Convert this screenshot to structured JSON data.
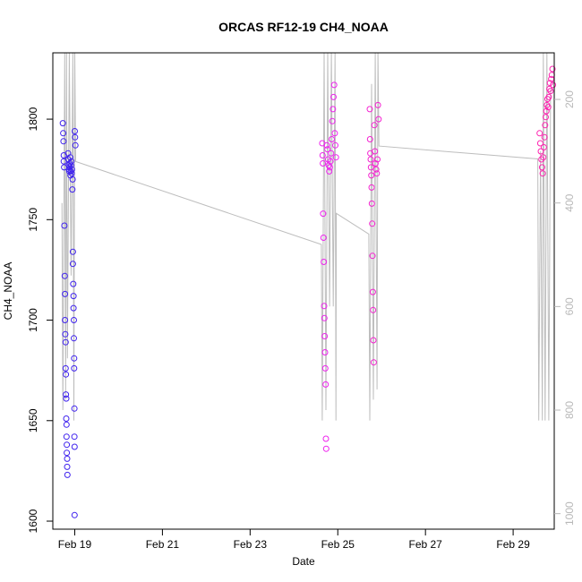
{
  "colors": {
    "left_axis": "#000000",
    "right_axis": "#b8b8b8",
    "trace_line": "#bdbdbd",
    "series_start": "#3f22ee",
    "series_end": "#ff22b0"
  },
  "chart_data": {
    "type": "scatter",
    "title": "ORCAS RF12-19 CH4_NOAA",
    "xlabel": "Date",
    "ylabel": "CH4_NOAA",
    "x_axis_type": "date",
    "xlim": [
      "2016-02-18 12:00",
      "2016-02-29 22:30"
    ],
    "ylim": [
      1596,
      1833
    ],
    "y2_axis": {
      "reversed": true,
      "range": [
        110,
        1030
      ],
      "ticks": [
        200,
        400,
        600,
        800,
        1000
      ],
      "color": "#b8b8b8",
      "label": ""
    },
    "x_ticks": [
      {
        "date": "2016-02-19",
        "label": "Feb 19"
      },
      {
        "date": "2016-02-21",
        "label": "Feb 21"
      },
      {
        "date": "2016-02-23",
        "label": "Feb 23"
      },
      {
        "date": "2016-02-25",
        "label": "Feb 25"
      },
      {
        "date": "2016-02-27",
        "label": "Feb 27"
      },
      {
        "date": "2016-02-29",
        "label": "Feb 29"
      }
    ],
    "y_ticks": [
      1600,
      1650,
      1700,
      1750,
      1800
    ],
    "grid": false,
    "legend": "none",
    "series": [
      {
        "marker": "open-circle",
        "color": "#3f22ee",
        "points": [
          {
            "x": "2016-02-18 17:30",
            "y": 1798
          },
          {
            "x": "2016-02-18 17:40",
            "y": 1793
          },
          {
            "x": "2016-02-18 17:50",
            "y": 1789
          },
          {
            "x": "2016-02-18 18:00",
            "y": 1782
          },
          {
            "x": "2016-02-18 18:00",
            "y": 1779
          },
          {
            "x": "2016-02-18 18:10",
            "y": 1776
          },
          {
            "x": "2016-02-18 18:20",
            "y": 1747
          },
          {
            "x": "2016-02-18 18:30",
            "y": 1722
          },
          {
            "x": "2016-02-18 18:40",
            "y": 1713
          },
          {
            "x": "2016-02-18 18:40",
            "y": 1700
          },
          {
            "x": "2016-02-18 18:50",
            "y": 1693
          },
          {
            "x": "2016-02-18 19:00",
            "y": 1689
          },
          {
            "x": "2016-02-18 19:00",
            "y": 1676
          },
          {
            "x": "2016-02-18 19:10",
            "y": 1673
          },
          {
            "x": "2016-02-18 19:10",
            "y": 1663
          },
          {
            "x": "2016-02-18 19:20",
            "y": 1661
          },
          {
            "x": "2016-02-18 19:20",
            "y": 1651
          },
          {
            "x": "2016-02-18 19:30",
            "y": 1648
          },
          {
            "x": "2016-02-18 19:30",
            "y": 1642
          },
          {
            "x": "2016-02-18 19:40",
            "y": 1638
          },
          {
            "x": "2016-02-18 19:40",
            "y": 1634
          },
          {
            "x": "2016-02-18 19:50",
            "y": 1631
          },
          {
            "x": "2016-02-18 19:50",
            "y": 1627
          },
          {
            "x": "2016-02-18 20:00",
            "y": 1623
          },
          {
            "x": "2016-02-18 20:20",
            "y": 1783
          },
          {
            "x": "2016-02-18 20:30",
            "y": 1780
          },
          {
            "x": "2016-02-18 20:40",
            "y": 1777
          },
          {
            "x": "2016-02-18 20:50",
            "y": 1775
          },
          {
            "x": "2016-02-18 21:00",
            "y": 1774
          },
          {
            "x": "2016-02-18 21:10",
            "y": 1776
          },
          {
            "x": "2016-02-18 21:20",
            "y": 1778
          },
          {
            "x": "2016-02-18 21:30",
            "y": 1781
          },
          {
            "x": "2016-02-18 21:40",
            "y": 1772
          },
          {
            "x": "2016-02-18 21:50",
            "y": 1774
          },
          {
            "x": "2016-02-18 22:00",
            "y": 1777
          },
          {
            "x": "2016-02-18 22:10",
            "y": 1779
          },
          {
            "x": "2016-02-18 22:20",
            "y": 1773
          },
          {
            "x": "2016-02-18 22:30",
            "y": 1775
          },
          {
            "x": "2016-02-18 22:40",
            "y": 1765
          },
          {
            "x": "2016-02-18 22:50",
            "y": 1770
          },
          {
            "x": "2016-02-18 23:00",
            "y": 1734
          },
          {
            "x": "2016-02-18 23:00",
            "y": 1728
          },
          {
            "x": "2016-02-18 23:10",
            "y": 1718
          },
          {
            "x": "2016-02-18 23:20",
            "y": 1712
          },
          {
            "x": "2016-02-18 23:20",
            "y": 1706
          },
          {
            "x": "2016-02-18 23:30",
            "y": 1700
          },
          {
            "x": "2016-02-18 23:30",
            "y": 1691
          },
          {
            "x": "2016-02-18 23:40",
            "y": 1681
          },
          {
            "x": "2016-02-18 23:40",
            "y": 1676
          },
          {
            "x": "2016-02-18 23:50",
            "y": 1656
          },
          {
            "x": "2016-02-18 23:50",
            "y": 1642
          },
          {
            "x": "2016-02-18 23:55",
            "y": 1637
          },
          {
            "x": "2016-02-18 23:55",
            "y": 1603
          },
          {
            "x": "2016-02-19 00:00",
            "y": 1794
          },
          {
            "x": "2016-02-19 00:10",
            "y": 1791
          },
          {
            "x": "2016-02-19 00:20",
            "y": 1787
          }
        ]
      },
      {
        "marker": "open-circle",
        "color": "#ee22ee",
        "points": [
          {
            "x": "2016-02-24 15:30",
            "y": 1788
          },
          {
            "x": "2016-02-24 15:40",
            "y": 1782
          },
          {
            "x": "2016-02-24 15:50",
            "y": 1778
          },
          {
            "x": "2016-02-24 16:00",
            "y": 1753
          },
          {
            "x": "2016-02-24 16:10",
            "y": 1741
          },
          {
            "x": "2016-02-24 16:20",
            "y": 1729
          },
          {
            "x": "2016-02-24 16:30",
            "y": 1707
          },
          {
            "x": "2016-02-24 16:40",
            "y": 1701
          },
          {
            "x": "2016-02-24 16:50",
            "y": 1692
          },
          {
            "x": "2016-02-24 17:00",
            "y": 1684
          },
          {
            "x": "2016-02-24 17:10",
            "y": 1676
          },
          {
            "x": "2016-02-24 17:20",
            "y": 1668
          },
          {
            "x": "2016-02-24 17:30",
            "y": 1641
          },
          {
            "x": "2016-02-24 17:40",
            "y": 1636
          },
          {
            "x": "2016-02-24 18:00",
            "y": 1787
          },
          {
            "x": "2016-02-24 18:20",
            "y": 1785
          },
          {
            "x": "2016-02-24 18:40",
            "y": 1780
          },
          {
            "x": "2016-02-24 19:00",
            "y": 1777
          },
          {
            "x": "2016-02-24 19:20",
            "y": 1774
          },
          {
            "x": "2016-02-24 19:40",
            "y": 1776
          },
          {
            "x": "2016-02-24 20:00",
            "y": 1779
          },
          {
            "x": "2016-02-24 20:20",
            "y": 1783
          },
          {
            "x": "2016-02-24 20:40",
            "y": 1790
          },
          {
            "x": "2016-02-24 21:00",
            "y": 1799
          },
          {
            "x": "2016-02-24 21:20",
            "y": 1805
          },
          {
            "x": "2016-02-24 21:40",
            "y": 1811
          },
          {
            "x": "2016-02-24 22:00",
            "y": 1817
          },
          {
            "x": "2016-02-24 22:20",
            "y": 1793
          },
          {
            "x": "2016-02-24 22:40",
            "y": 1787
          },
          {
            "x": "2016-02-24 23:00",
            "y": 1781
          }
        ]
      },
      {
        "marker": "open-circle",
        "color": "#f422d0",
        "points": [
          {
            "x": "2016-02-25 17:30",
            "y": 1805
          },
          {
            "x": "2016-02-25 17:40",
            "y": 1790
          },
          {
            "x": "2016-02-25 17:50",
            "y": 1783
          },
          {
            "x": "2016-02-25 18:00",
            "y": 1780
          },
          {
            "x": "2016-02-25 18:10",
            "y": 1776
          },
          {
            "x": "2016-02-25 18:20",
            "y": 1772
          },
          {
            "x": "2016-02-25 18:30",
            "y": 1766
          },
          {
            "x": "2016-02-25 18:40",
            "y": 1758
          },
          {
            "x": "2016-02-25 18:50",
            "y": 1748
          },
          {
            "x": "2016-02-25 19:00",
            "y": 1732
          },
          {
            "x": "2016-02-25 19:10",
            "y": 1714
          },
          {
            "x": "2016-02-25 19:20",
            "y": 1705
          },
          {
            "x": "2016-02-25 19:30",
            "y": 1690
          },
          {
            "x": "2016-02-25 19:40",
            "y": 1679
          },
          {
            "x": "2016-02-25 20:00",
            "y": 1797
          },
          {
            "x": "2016-02-25 20:20",
            "y": 1784
          },
          {
            "x": "2016-02-25 20:40",
            "y": 1778
          },
          {
            "x": "2016-02-25 21:00",
            "y": 1775
          },
          {
            "x": "2016-02-25 21:20",
            "y": 1773
          },
          {
            "x": "2016-02-25 21:40",
            "y": 1780
          },
          {
            "x": "2016-02-25 22:00",
            "y": 1807
          },
          {
            "x": "2016-02-25 22:20",
            "y": 1800
          }
        ]
      },
      {
        "marker": "open-circle",
        "color": "#ff22b0",
        "points": [
          {
            "x": "2016-02-29 14:30",
            "y": 1793
          },
          {
            "x": "2016-02-29 14:50",
            "y": 1788
          },
          {
            "x": "2016-02-29 15:10",
            "y": 1784
          },
          {
            "x": "2016-02-29 15:30",
            "y": 1780
          },
          {
            "x": "2016-02-29 15:50",
            "y": 1776
          },
          {
            "x": "2016-02-29 16:10",
            "y": 1773
          },
          {
            "x": "2016-02-29 16:30",
            "y": 1781
          },
          {
            "x": "2016-02-29 16:50",
            "y": 1786
          },
          {
            "x": "2016-02-29 17:10",
            "y": 1791
          },
          {
            "x": "2016-02-29 17:30",
            "y": 1797
          },
          {
            "x": "2016-02-29 17:50",
            "y": 1801
          },
          {
            "x": "2016-02-29 18:10",
            "y": 1804
          },
          {
            "x": "2016-02-29 18:30",
            "y": 1807
          },
          {
            "x": "2016-02-29 18:50",
            "y": 1810
          },
          {
            "x": "2016-02-29 19:10",
            "y": 1806
          },
          {
            "x": "2016-02-29 19:30",
            "y": 1811
          },
          {
            "x": "2016-02-29 19:50",
            "y": 1815
          },
          {
            "x": "2016-02-29 20:10",
            "y": 1818
          },
          {
            "x": "2016-02-29 20:30",
            "y": 1814
          },
          {
            "x": "2016-02-29 20:50",
            "y": 1820
          },
          {
            "x": "2016-02-29 21:10",
            "y": 1822
          },
          {
            "x": "2016-02-29 21:30",
            "y": 1825
          },
          {
            "x": "2016-02-29 21:50",
            "y": 1817
          }
        ]
      }
    ],
    "trace": {
      "axis": "y2",
      "color": "#bdbdbd",
      "points": [
        {
          "x": "2016-02-18 17:00",
          "y": 400
        },
        {
          "x": "2016-02-18 17:30",
          "y": 800
        },
        {
          "x": "2016-02-18 18:30",
          "y": 110
        },
        {
          "x": "2016-02-18 19:00",
          "y": 780
        },
        {
          "x": "2016-02-18 19:30",
          "y": 110
        },
        {
          "x": "2016-02-18 20:00",
          "y": 700
        },
        {
          "x": "2016-02-18 21:00",
          "y": 110
        },
        {
          "x": "2016-02-18 22:00",
          "y": 540
        },
        {
          "x": "2016-02-18 23:00",
          "y": 110
        },
        {
          "x": "2016-02-18 23:30",
          "y": 820
        },
        {
          "x": "2016-02-19 00:00",
          "y": 110
        },
        {
          "x": "2016-02-19 00:30",
          "y": 320
        },
        {
          "x": "2016-02-24 15:00",
          "y": 480
        },
        {
          "x": "2016-02-24 15:30",
          "y": 820
        },
        {
          "x": "2016-02-24 16:30",
          "y": 110
        },
        {
          "x": "2016-02-24 17:30",
          "y": 800
        },
        {
          "x": "2016-02-24 18:30",
          "y": 110
        },
        {
          "x": "2016-02-24 19:30",
          "y": 600
        },
        {
          "x": "2016-02-24 20:30",
          "y": 110
        },
        {
          "x": "2016-02-24 21:30",
          "y": 600
        },
        {
          "x": "2016-02-24 22:30",
          "y": 110
        },
        {
          "x": "2016-02-24 23:00",
          "y": 820
        },
        {
          "x": "2016-02-24 23:10",
          "y": 420
        },
        {
          "x": "2016-02-25 17:00",
          "y": 460
        },
        {
          "x": "2016-02-25 17:30",
          "y": 820
        },
        {
          "x": "2016-02-25 18:30",
          "y": 170
        },
        {
          "x": "2016-02-25 19:30",
          "y": 780
        },
        {
          "x": "2016-02-25 20:30",
          "y": 110
        },
        {
          "x": "2016-02-25 21:30",
          "y": 760
        },
        {
          "x": "2016-02-25 22:00",
          "y": 110
        },
        {
          "x": "2016-02-25 22:30",
          "y": 290
        },
        {
          "x": "2016-02-29 13:30",
          "y": 315
        },
        {
          "x": "2016-02-29 14:00",
          "y": 820
        },
        {
          "x": "2016-02-29 15:00",
          "y": 300
        },
        {
          "x": "2016-02-29 16:00",
          "y": 820
        },
        {
          "x": "2016-02-29 16:30",
          "y": 110
        },
        {
          "x": "2016-02-29 17:30",
          "y": 820
        },
        {
          "x": "2016-02-29 18:30",
          "y": 110
        },
        {
          "x": "2016-02-29 19:30",
          "y": 820
        },
        {
          "x": "2016-02-29 20:30",
          "y": 180
        }
      ]
    }
  }
}
